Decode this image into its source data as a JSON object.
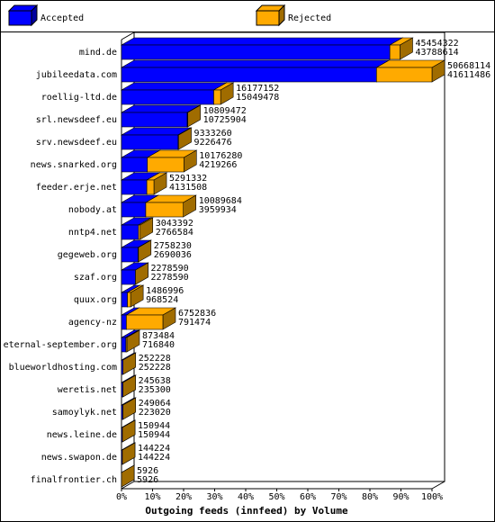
{
  "chart_data": {
    "type": "bar3d_stacked_horizontal",
    "xlabel": "Outgoing feeds (innfeed) by Volume",
    "categories": [
      "mind.de",
      "jubileedata.com",
      "roellig-ltd.de",
      "srl.newsdeef.eu",
      "srv.newsdeef.eu",
      "news.snarked.org",
      "feeder.erje.net",
      "nobody.at",
      "nntp4.net",
      "gegeweb.org",
      "szaf.org",
      "quux.org",
      "agency-nz",
      "eternal-september.org",
      "blueworldhosting.com",
      "weretis.net",
      "samoylyk.net",
      "news.leine.de",
      "news.swapon.de",
      "finalfrontier.ch"
    ],
    "totals": [
      45454322,
      50668114,
      16177152,
      10809472,
      9333260,
      10176280,
      5291332,
      10089684,
      3043392,
      2758230,
      2278590,
      1486996,
      6752836,
      873484,
      252228,
      245638,
      249064,
      150944,
      144224,
      5926
    ],
    "series": [
      {
        "name": "Accepted",
        "color": "#0000ff",
        "side": "#0000a0",
        "values": [
          43788614,
          41611486,
          15049478,
          10725904,
          9226476,
          4219266,
          4131508,
          3959934,
          2766584,
          2690036,
          2278590,
          968524,
          791474,
          716840,
          252228,
          235300,
          223020,
          150944,
          144224,
          5926
        ]
      },
      {
        "name": "Rejected",
        "color": "#ffaa00",
        "side": "#a06c00",
        "values": [
          1665708,
          9056628,
          1127674,
          83568,
          106784,
          5957014,
          1159824,
          6129750,
          276808,
          68194,
          0,
          518472,
          5961362,
          156644,
          0,
          10338,
          26044,
          0,
          0,
          0
        ]
      }
    ],
    "xlim": [
      0,
      50668114
    ],
    "xticks": [
      {
        "value": 0,
        "label": "0%"
      },
      {
        "value": 5066811.4,
        "label": "10%"
      },
      {
        "value": 10133622.8,
        "label": "20%"
      },
      {
        "value": 15200434.2,
        "label": "30%"
      },
      {
        "value": 20267245.6,
        "label": "40%"
      },
      {
        "value": 25334057,
        "label": "50%"
      },
      {
        "value": 30400868.4,
        "label": "60%"
      },
      {
        "value": 35467679.8,
        "label": "70%"
      },
      {
        "value": 40534491.2,
        "label": "80%"
      },
      {
        "value": 45601302.6,
        "label": "90%"
      },
      {
        "value": 50668114,
        "label": "100%"
      }
    ]
  }
}
